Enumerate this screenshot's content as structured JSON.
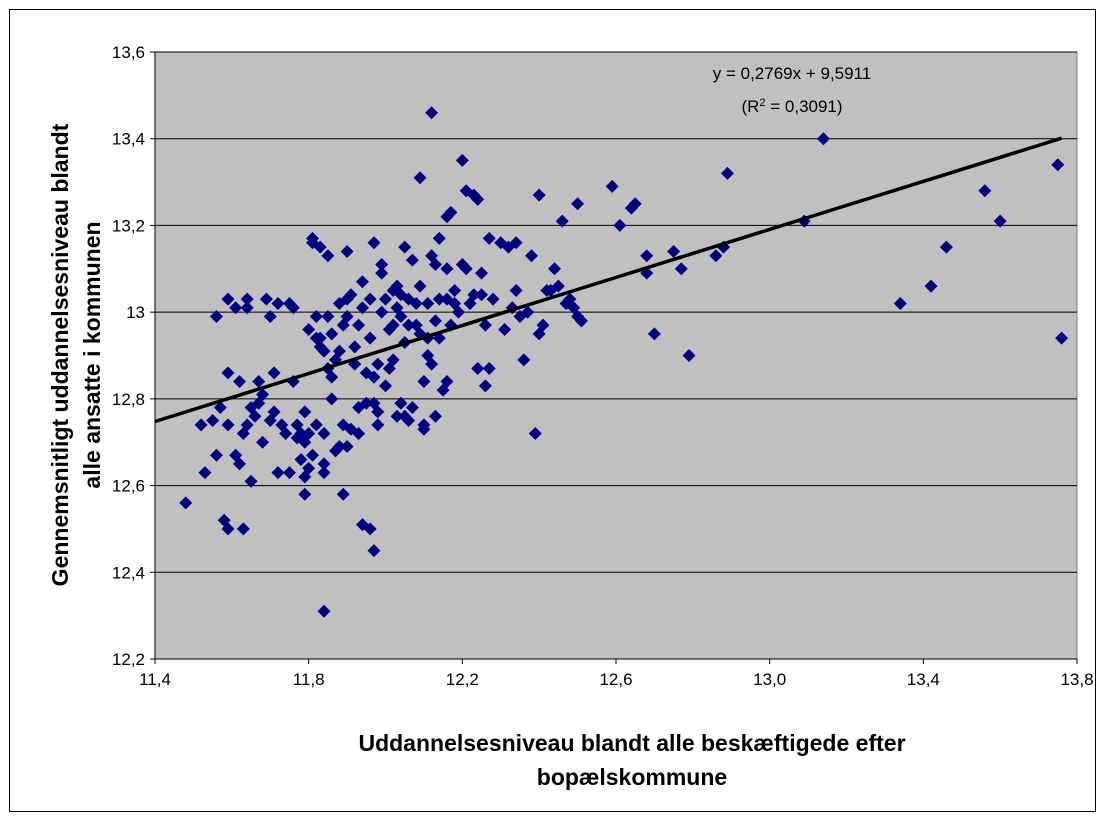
{
  "chart_data": {
    "type": "scatter",
    "title": "",
    "xlabel_lines": [
      "Uddannelsesniveau blandt alle beskæftigede efter",
      "bopælskommune"
    ],
    "ylabel_lines": [
      "Gennemsnitligt uddannelsesniveau blandt",
      "alle ansatte i kommunen"
    ],
    "xlim": [
      11.4,
      13.8
    ],
    "ylim": [
      12.2,
      13.6
    ],
    "x_ticks": [
      11.4,
      11.8,
      12.2,
      12.6,
      13.0,
      13.4,
      13.8
    ],
    "x_tick_labels": [
      "11,4",
      "11,8",
      "12,2",
      "12,6",
      "13,0",
      "13,4",
      "13,8"
    ],
    "y_ticks": [
      12.2,
      12.4,
      12.6,
      12.8,
      13.0,
      13.2,
      13.4,
      13.6
    ],
    "y_tick_labels": [
      "12,2",
      "12,4",
      "12,6",
      "12,8",
      "13",
      "13,2",
      "13,4",
      "13,6"
    ],
    "grid": "horizontal",
    "plot_background": "#c0c0c0",
    "marker_color": "#000080",
    "trendline": {
      "slope": 0.2769,
      "intercept": 9.5911,
      "equation_label": "y = 0,2769x + 9,5911",
      "r2_prefix": "(R",
      "r2_sup": "2",
      "r2_suffix": " = 0,3091)",
      "color": "#000000"
    },
    "points": [
      [
        11.48,
        12.56
      ],
      [
        11.52,
        12.74
      ],
      [
        11.53,
        12.63
      ],
      [
        11.55,
        12.75
      ],
      [
        11.56,
        12.99
      ],
      [
        11.56,
        12.67
      ],
      [
        11.57,
        12.78
      ],
      [
        11.58,
        12.52
      ],
      [
        11.59,
        12.5
      ],
      [
        11.59,
        12.74
      ],
      [
        11.59,
        12.86
      ],
      [
        11.59,
        13.03
      ],
      [
        11.61,
        13.01
      ],
      [
        11.61,
        12.67
      ],
      [
        11.62,
        12.84
      ],
      [
        11.62,
        12.65
      ],
      [
        11.63,
        12.5
      ],
      [
        11.63,
        12.72
      ],
      [
        11.64,
        13.03
      ],
      [
        11.64,
        13.01
      ],
      [
        11.64,
        12.74
      ],
      [
        11.65,
        12.61
      ],
      [
        11.65,
        12.78
      ],
      [
        11.66,
        12.76
      ],
      [
        11.67,
        12.79
      ],
      [
        11.67,
        12.84
      ],
      [
        11.68,
        12.81
      ],
      [
        11.68,
        12.7
      ],
      [
        11.69,
        13.03
      ],
      [
        11.7,
        12.75
      ],
      [
        11.7,
        12.99
      ],
      [
        11.71,
        12.86
      ],
      [
        11.71,
        12.77
      ],
      [
        11.72,
        13.02
      ],
      [
        11.72,
        12.63
      ],
      [
        11.73,
        12.74
      ],
      [
        11.74,
        12.72
      ],
      [
        11.75,
        12.63
      ],
      [
        11.75,
        13.02
      ],
      [
        11.76,
        13.01
      ],
      [
        11.76,
        12.84
      ],
      [
        11.77,
        12.71
      ],
      [
        11.77,
        12.74
      ],
      [
        11.78,
        12.72
      ],
      [
        11.78,
        12.66
      ],
      [
        11.79,
        12.77
      ],
      [
        11.79,
        12.62
      ],
      [
        11.79,
        12.58
      ],
      [
        11.79,
        12.7
      ],
      [
        11.8,
        12.96
      ],
      [
        11.8,
        12.72
      ],
      [
        11.8,
        12.64
      ],
      [
        11.81,
        12.67
      ],
      [
        11.81,
        13.17
      ],
      [
        11.81,
        13.16
      ],
      [
        11.82,
        12.99
      ],
      [
        11.82,
        12.74
      ],
      [
        11.82,
        12.94
      ],
      [
        11.83,
        13.15
      ],
      [
        11.83,
        12.94
      ],
      [
        11.83,
        12.92
      ],
      [
        11.84,
        12.65
      ],
      [
        11.84,
        12.91
      ],
      [
        11.84,
        12.72
      ],
      [
        11.84,
        12.63
      ],
      [
        11.84,
        12.31
      ],
      [
        11.85,
        13.13
      ],
      [
        11.85,
        12.87
      ],
      [
        11.85,
        12.99
      ],
      [
        11.86,
        12.95
      ],
      [
        11.86,
        12.85
      ],
      [
        11.86,
        12.8
      ],
      [
        11.87,
        12.68
      ],
      [
        11.87,
        12.89
      ],
      [
        11.88,
        12.91
      ],
      [
        11.88,
        12.69
      ],
      [
        11.88,
        13.02
      ],
      [
        11.89,
        12.97
      ],
      [
        11.89,
        12.74
      ],
      [
        11.89,
        12.58
      ],
      [
        11.9,
        12.99
      ],
      [
        11.9,
        13.03
      ],
      [
        11.9,
        13.14
      ],
      [
        11.9,
        12.69
      ],
      [
        11.91,
        12.73
      ],
      [
        11.91,
        13.04
      ],
      [
        11.92,
        12.92
      ],
      [
        11.92,
        12.88
      ],
      [
        11.93,
        12.97
      ],
      [
        11.93,
        12.72
      ],
      [
        11.93,
        12.78
      ],
      [
        11.94,
        13.01
      ],
      [
        11.94,
        12.51
      ],
      [
        11.94,
        13.07
      ],
      [
        11.95,
        12.79
      ],
      [
        11.95,
        12.86
      ],
      [
        11.96,
        12.5
      ],
      [
        11.96,
        13.03
      ],
      [
        11.96,
        12.94
      ],
      [
        11.97,
        12.45
      ],
      [
        11.97,
        13.16
      ],
      [
        11.97,
        12.79
      ],
      [
        11.97,
        12.85
      ],
      [
        11.98,
        12.88
      ],
      [
        11.98,
        12.74
      ],
      [
        11.98,
        12.77
      ],
      [
        11.99,
        13.0
      ],
      [
        11.99,
        13.11
      ],
      [
        11.99,
        13.09
      ],
      [
        12.0,
        12.83
      ],
      [
        12.0,
        13.03
      ],
      [
        12.01,
        12.96
      ],
      [
        12.01,
        12.87
      ],
      [
        12.02,
        13.05
      ],
      [
        12.02,
        12.97
      ],
      [
        12.02,
        12.89
      ],
      [
        12.03,
        13.01
      ],
      [
        12.03,
        13.06
      ],
      [
        12.03,
        12.76
      ],
      [
        12.04,
        12.99
      ],
      [
        12.04,
        13.04
      ],
      [
        12.04,
        12.79
      ],
      [
        12.05,
        12.76
      ],
      [
        12.05,
        13.15
      ],
      [
        12.05,
        12.93
      ],
      [
        12.06,
        12.75
      ],
      [
        12.06,
        13.03
      ],
      [
        12.06,
        12.97
      ],
      [
        12.07,
        13.12
      ],
      [
        12.07,
        12.78
      ],
      [
        12.08,
        12.97
      ],
      [
        12.08,
        13.02
      ],
      [
        12.09,
        13.06
      ],
      [
        12.09,
        12.95
      ],
      [
        12.09,
        13.31
      ],
      [
        12.1,
        12.73
      ],
      [
        12.1,
        12.84
      ],
      [
        12.1,
        12.74
      ],
      [
        12.11,
        12.94
      ],
      [
        12.11,
        13.02
      ],
      [
        12.11,
        12.9
      ],
      [
        12.12,
        13.46
      ],
      [
        12.12,
        13.13
      ],
      [
        12.12,
        12.88
      ],
      [
        12.13,
        12.98
      ],
      [
        12.13,
        12.76
      ],
      [
        12.13,
        13.11
      ],
      [
        12.14,
        13.03
      ],
      [
        12.14,
        13.17
      ],
      [
        12.14,
        12.94
      ],
      [
        12.15,
        12.82
      ],
      [
        12.16,
        13.22
      ],
      [
        12.16,
        12.84
      ],
      [
        12.16,
        13.03
      ],
      [
        12.16,
        13.1
      ],
      [
        12.17,
        12.97
      ],
      [
        12.17,
        13.23
      ],
      [
        12.18,
        13.05
      ],
      [
        12.18,
        13.02
      ],
      [
        12.19,
        13.0
      ],
      [
        12.2,
        13.35
      ],
      [
        12.2,
        13.11
      ],
      [
        12.21,
        13.28
      ],
      [
        12.21,
        13.1
      ],
      [
        12.22,
        13.02
      ],
      [
        12.23,
        13.04
      ],
      [
        12.23,
        13.27
      ],
      [
        12.24,
        13.26
      ],
      [
        12.24,
        12.87
      ],
      [
        12.25,
        13.09
      ],
      [
        12.25,
        13.04
      ],
      [
        12.26,
        12.97
      ],
      [
        12.26,
        12.83
      ],
      [
        12.27,
        12.87
      ],
      [
        12.27,
        13.17
      ],
      [
        12.28,
        13.03
      ],
      [
        12.3,
        13.16
      ],
      [
        12.31,
        12.96
      ],
      [
        12.32,
        13.15
      ],
      [
        12.33,
        13.01
      ],
      [
        12.34,
        13.16
      ],
      [
        12.34,
        13.05
      ],
      [
        12.35,
        12.99
      ],
      [
        12.36,
        12.89
      ],
      [
        12.37,
        13.0
      ],
      [
        12.38,
        13.13
      ],
      [
        12.39,
        12.72
      ],
      [
        12.4,
        13.27
      ],
      [
        12.4,
        12.95
      ],
      [
        12.41,
        12.97
      ],
      [
        12.42,
        13.05
      ],
      [
        12.43,
        13.05
      ],
      [
        12.44,
        13.1
      ],
      [
        12.45,
        13.06
      ],
      [
        12.46,
        13.21
      ],
      [
        12.47,
        13.02
      ],
      [
        12.48,
        13.03
      ],
      [
        12.49,
        13.01
      ],
      [
        12.5,
        13.25
      ],
      [
        12.5,
        12.99
      ],
      [
        12.51,
        12.98
      ],
      [
        12.59,
        13.29
      ],
      [
        12.61,
        13.2
      ],
      [
        12.64,
        13.24
      ],
      [
        12.65,
        13.25
      ],
      [
        12.68,
        13.09
      ],
      [
        12.68,
        13.13
      ],
      [
        12.7,
        12.95
      ],
      [
        12.75,
        13.14
      ],
      [
        12.77,
        13.1
      ],
      [
        12.79,
        12.9
      ],
      [
        12.86,
        13.13
      ],
      [
        12.88,
        13.15
      ],
      [
        12.89,
        13.32
      ],
      [
        13.09,
        13.21
      ],
      [
        13.14,
        13.4
      ],
      [
        13.34,
        13.02
      ],
      [
        13.42,
        13.06
      ],
      [
        13.46,
        13.15
      ],
      [
        13.56,
        13.28
      ],
      [
        13.6,
        13.21
      ],
      [
        13.75,
        13.34
      ],
      [
        13.76,
        12.94
      ]
    ]
  }
}
